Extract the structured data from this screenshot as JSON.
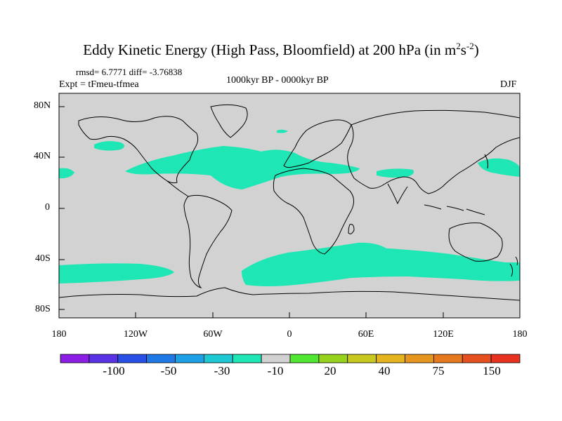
{
  "header": {
    "title_main": "Eddy Kinetic Energy (High Pass, Bloomfield) at 200 hPa (in m",
    "title_sup1": "2",
    "title_mid": "s",
    "title_sup2": "-2",
    "title_end": ")",
    "rmsd": "rmsd= 6.7771 diff= -3.76838",
    "expt": "Expt = tFmeu-tfmea",
    "period": "1000kyr BP - 0000kyr BP",
    "season": "DJF"
  },
  "axes": {
    "lat_labels": [
      "80N",
      "40N",
      "0",
      "40S",
      "80S"
    ],
    "lon_labels": [
      "180",
      "120W",
      "60W",
      "0",
      "60E",
      "120E",
      "180"
    ]
  },
  "colorbar": {
    "colors": [
      "#8c1ee6",
      "#5a32e6",
      "#2850e6",
      "#1e78e6",
      "#1ea0e6",
      "#1ec8d2",
      "#1ee6b4",
      "#d2d2d2",
      "#50e632",
      "#96d21e",
      "#c8c81e",
      "#e6b41e",
      "#e6961e",
      "#e6781e",
      "#e6501e",
      "#e6321e"
    ],
    "labels": [
      "-100",
      "-50",
      "-30",
      "-10",
      "20",
      "40",
      "75",
      "150"
    ]
  },
  "map": {
    "ocean_color": "#d2d2d2",
    "anomaly_color": "#1ee6b4"
  }
}
